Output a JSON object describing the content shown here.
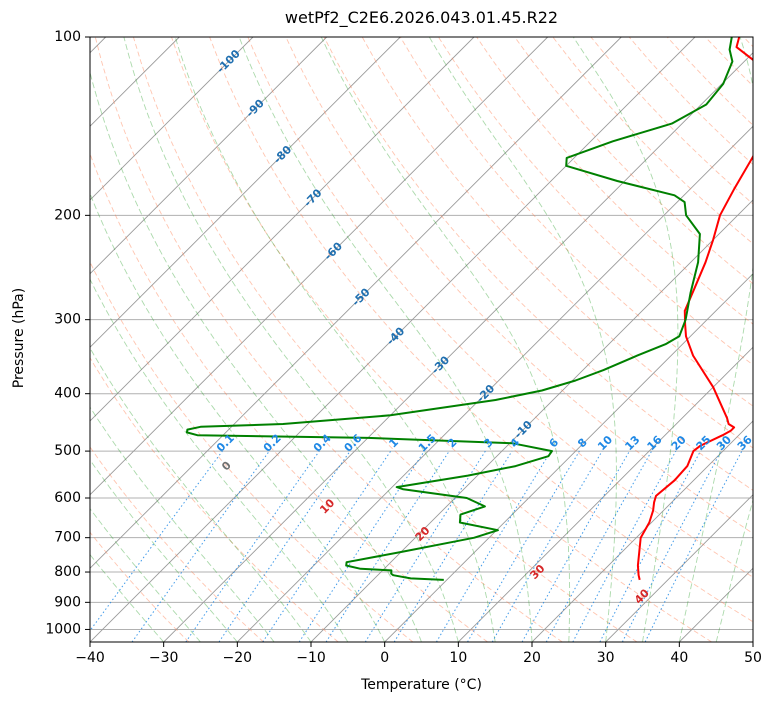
{
  "chart_data": {
    "type": "line",
    "title": "wetPf2_C2E6.2026.043.01.45.R22",
    "xlabel": "Temperature (°C)",
    "ylabel": "Pressure (hPa)",
    "xlim": [
      -40,
      50
    ],
    "ylim": [
      1050,
      100
    ],
    "y_scale": "log",
    "grid": true,
    "x_ticks": [
      "−40",
      "−30",
      "−20",
      "−10",
      "0",
      "10",
      "20",
      "30",
      "40",
      "50"
    ],
    "y_ticks": [
      {
        "p": 100,
        "label": "100"
      },
      {
        "p": 200,
        "label": "200"
      },
      {
        "p": 300,
        "label": "300"
      },
      {
        "p": 400,
        "label": "400"
      },
      {
        "p": 500,
        "label": "500"
      },
      {
        "p": 600,
        "label": "600"
      },
      {
        "p": 700,
        "label": "700"
      },
      {
        "p": 800,
        "label": "800"
      },
      {
        "p": 900,
        "label": "900"
      },
      {
        "p": 1000,
        "label": "1000"
      }
    ],
    "skew": 45,
    "colors": {
      "temperature": "#ff0000",
      "dewpoint": "#008000",
      "dry_adiabat": "#ff7f50",
      "moist_adiabat": "#2ca02c",
      "mixing_ratio": "#1e88e5",
      "isotherm": "#808080",
      "dewpoint_label": "#1f6fb0",
      "theta_label": "#d62728"
    },
    "series": [
      {
        "name": "",
        "key": "temperature",
        "points": [
          [
            26.2,
            825
          ],
          [
            25.4,
            810
          ],
          [
            24.0,
            780
          ],
          [
            20.6,
            700
          ],
          [
            19.7,
            660
          ],
          [
            18.6,
            630
          ],
          [
            17.6,
            610
          ],
          [
            17.0,
            595
          ],
          [
            17.4,
            560
          ],
          [
            17.2,
            530
          ],
          [
            16.0,
            500
          ],
          [
            16.2,
            490
          ],
          [
            17.8,
            470
          ],
          [
            18.3,
            462
          ],
          [
            18.3,
            456
          ],
          [
            17.1,
            450
          ],
          [
            16.1,
            440
          ],
          [
            10.0,
            390
          ],
          [
            3.0,
            345
          ],
          [
            -0.6,
            320
          ],
          [
            -2.4,
            305
          ],
          [
            -4.2,
            290
          ],
          [
            -6.0,
            265
          ],
          [
            -8.0,
            240
          ],
          [
            -10.0,
            220
          ],
          [
            -12.4,
            200
          ],
          [
            -14.1,
            180
          ],
          [
            -15.8,
            160
          ],
          [
            -17.5,
            145
          ],
          [
            -19.8,
            135
          ],
          [
            -23.0,
            125
          ],
          [
            -25.0,
            118
          ],
          [
            -28.5,
            110
          ],
          [
            -33.0,
            104
          ],
          [
            -34.0,
            100
          ]
        ]
      },
      {
        "name": "",
        "key": "dewpoint",
        "points": [
          [
            -0.4,
            825
          ],
          [
            -5.1,
            820
          ],
          [
            -6.5,
            815
          ],
          [
            -7.9,
            810
          ],
          [
            -8.4,
            805
          ],
          [
            -8.8,
            795
          ],
          [
            -13.2,
            790
          ],
          [
            -15.6,
            780
          ],
          [
            -16.0,
            770
          ],
          [
            -10.0,
            740
          ],
          [
            -4.0,
            710
          ],
          [
            -2.0,
            700
          ],
          [
            0.2,
            680
          ],
          [
            -6.0,
            660
          ],
          [
            -7.0,
            640
          ],
          [
            -4.8,
            620
          ],
          [
            -8.4,
            600
          ],
          [
            -18.2,
            580
          ],
          [
            -19.4,
            575
          ],
          [
            -11.3,
            550
          ],
          [
            -6.1,
            530
          ],
          [
            -3.0,
            510
          ],
          [
            -3.2,
            500
          ],
          [
            -9.6,
            485
          ],
          [
            -30.0,
            475
          ],
          [
            -53.5,
            470
          ],
          [
            -55.3,
            465
          ],
          [
            -55.6,
            460
          ],
          [
            -54.2,
            455
          ],
          [
            -43.4,
            450
          ],
          [
            -30.0,
            435
          ],
          [
            -17.8,
            410
          ],
          [
            -12.8,
            395
          ],
          [
            -9.6,
            380
          ],
          [
            -7.2,
            365
          ],
          [
            -4.6,
            345
          ],
          [
            -2.3,
            330
          ],
          [
            -1.5,
            320
          ],
          [
            -2.9,
            300
          ],
          [
            -5.9,
            270
          ],
          [
            -9.0,
            240
          ],
          [
            -12.6,
            215
          ],
          [
            -17.0,
            200
          ],
          [
            -19.0,
            190
          ],
          [
            -21.3,
            185
          ],
          [
            -31.0,
            175
          ],
          [
            -40.0,
            165
          ],
          [
            -41.0,
            160
          ],
          [
            -37.0,
            150
          ],
          [
            -31.4,
            140
          ],
          [
            -29.3,
            130
          ],
          [
            -29.8,
            120
          ],
          [
            -31.6,
            110
          ],
          [
            -33.6,
            105
          ],
          [
            -35.0,
            100
          ]
        ]
      }
    ],
    "dry_adiabat_labels": [
      {
        "text": "0",
        "theta": 0,
        "p": 530
      },
      {
        "text": "10",
        "theta": 10,
        "p": 620
      },
      {
        "text": "20",
        "theta": 20,
        "p": 690
      },
      {
        "text": "30",
        "theta": 30,
        "p": 800
      },
      {
        "text": "40",
        "theta": 40,
        "p": 880
      }
    ],
    "dewpoint_labels": [
      {
        "text": "-100",
        "T": -100,
        "p": 110
      },
      {
        "text": "-90",
        "T": -90,
        "p": 132
      },
      {
        "text": "-80",
        "T": -80,
        "p": 158
      },
      {
        "text": "-70",
        "T": -70,
        "p": 187
      },
      {
        "text": "-60",
        "T": -60,
        "p": 230
      },
      {
        "text": "-50",
        "T": -50,
        "p": 275
      },
      {
        "text": "-40",
        "T": -40,
        "p": 320
      },
      {
        "text": "-30",
        "T": -30,
        "p": 358
      },
      {
        "text": "-20",
        "T": -20,
        "p": 400
      },
      {
        "text": "-10",
        "T": -10,
        "p": 460
      }
    ],
    "mixing_ratio_labels": [
      "0.1",
      "0.2",
      "0.4",
      "0.6",
      "1",
      "1.5",
      "2",
      "3",
      "4",
      "6",
      "8",
      "10",
      "13",
      "16",
      "20",
      "25",
      "30",
      "36"
    ]
  }
}
